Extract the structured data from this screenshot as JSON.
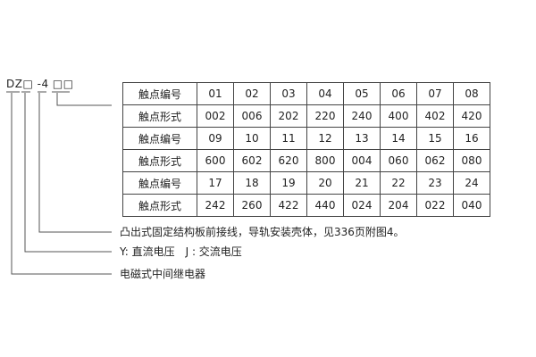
{
  "model_code": "DZ□ -4 □□",
  "table": [
    {
      "header": "触点编号",
      "cells": [
        "01",
        "02",
        "03",
        "04",
        "05",
        "06",
        "07",
        "08"
      ]
    },
    {
      "header": "触点形式",
      "cells": [
        "002",
        "006",
        "202",
        "220",
        "240",
        "400",
        "402",
        "420"
      ]
    },
    {
      "header": "触点编号",
      "cells": [
        "09",
        "10",
        "11",
        "12",
        "13",
        "14",
        "15",
        "16"
      ]
    },
    {
      "header": "触点形式",
      "cells": [
        "600",
        "602",
        "620",
        "800",
        "004",
        "060",
        "062",
        "080"
      ]
    },
    {
      "header": "触点编号",
      "cells": [
        "17",
        "18",
        "19",
        "20",
        "21",
        "22",
        "23",
        "24"
      ]
    },
    {
      "header": "触点形式",
      "cells": [
        "242",
        "260",
        "422",
        "440",
        "024",
        "204",
        "022",
        "040"
      ]
    }
  ],
  "notes": [
    "凸出式固定结构板前接线，导轨安装壳体，见336页附图4。",
    "Y: 直流电压　J : 交流电压",
    "电磁式中间继电器"
  ]
}
